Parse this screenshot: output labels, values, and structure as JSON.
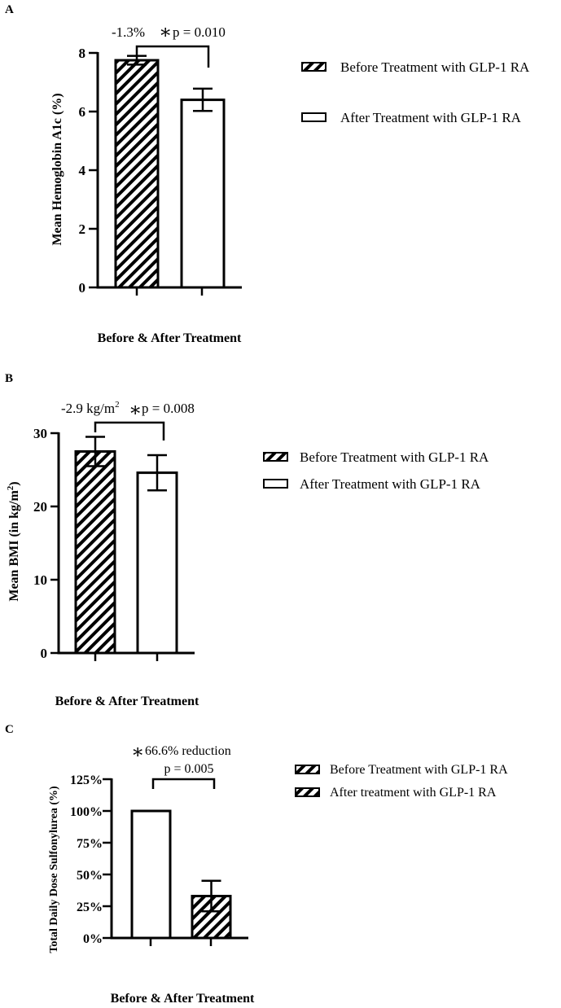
{
  "colors": {
    "ink": "#000000",
    "bar_fill": "#ffffff"
  },
  "chart_data": [
    {
      "panel": "A",
      "type": "bar",
      "categories": [
        "Before Treatment with GLP-1 RA",
        "After Treatment with GLP-1 RA"
      ],
      "values": [
        7.75,
        6.4
      ],
      "errors": [
        0.15,
        0.38
      ],
      "patterns": [
        "hatch",
        "solid"
      ],
      "ylim": [
        0,
        8
      ],
      "yticks": [
        0,
        2,
        4,
        6,
        8
      ],
      "ytick_labels": [
        "0",
        "2",
        "4",
        "6",
        "8"
      ],
      "ylabel": "Mean Hemoglobin  A1c (%)",
      "xlabel": "Before & After Treatment",
      "annotation": {
        "change": "-1.3%",
        "star": "∗",
        "pvalue": "p = 0.010"
      },
      "legend": [
        "Before Treatment with GLP-1 RA",
        "After Treatment with GLP-1 RA"
      ],
      "legend_position": "right"
    },
    {
      "panel": "B",
      "type": "bar",
      "categories": [
        "Before Treatment with GLP-1 RA",
        "After Treatment with GLP-1 RA"
      ],
      "values": [
        27.5,
        24.6
      ],
      "errors": [
        2.0,
        2.4
      ],
      "patterns": [
        "hatch",
        "solid"
      ],
      "ylim": [
        0,
        30
      ],
      "yticks": [
        0,
        10,
        20,
        30
      ],
      "ytick_labels": [
        "0",
        "10",
        "20",
        "30"
      ],
      "ylabel": "Mean BMI (in kg/m",
      "ylabel_sup": "2",
      "ylabel_end": ")",
      "xlabel": "Before & After Treatment",
      "annotation": {
        "change": "-2.9 kg/m",
        "change_sup": "2",
        "star": "∗",
        "pvalue": "p = 0.008"
      },
      "legend": [
        "Before Treatment with GLP-1 RA",
        "After Treatment with GLP-1 RA"
      ],
      "legend_position": "right"
    },
    {
      "panel": "C",
      "type": "bar",
      "categories": [
        "Before Treatment with GLP-1 RA",
        "After treatment with GLP-1 RA"
      ],
      "values": [
        100,
        33
      ],
      "errors": [
        0,
        12
      ],
      "patterns": [
        "solid",
        "hatch"
      ],
      "ylim": [
        0,
        125
      ],
      "yticks": [
        0,
        25,
        50,
        75,
        100,
        125
      ],
      "ytick_labels": [
        "0%",
        "25%",
        "50%",
        "75%",
        "100%",
        "125%"
      ],
      "ylabel": "Total Daily Dose Sulfonylurea (%)",
      "xlabel": "Before & After Treatment",
      "annotation": {
        "star": "∗",
        "change": "66.6% reduction",
        "pvalue": "p = 0.005"
      },
      "legend": [
        "Before Treatment with GLP-1 RA",
        "After treatment with GLP-1 RA"
      ],
      "legend_position": "right"
    }
  ]
}
